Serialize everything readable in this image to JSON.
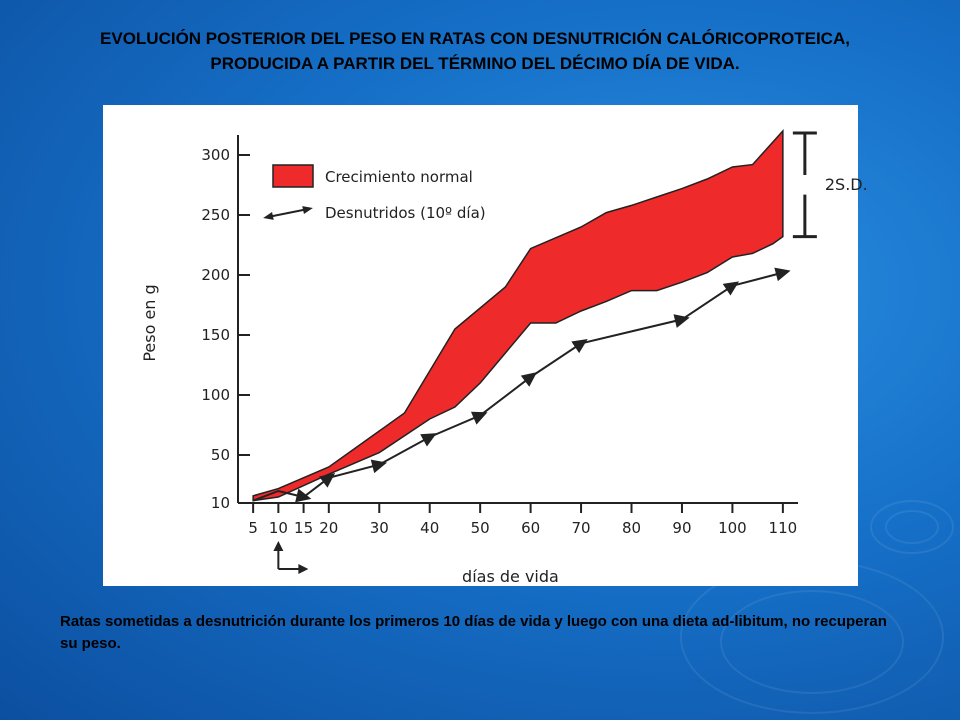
{
  "slide": {
    "title": "EVOLUCIÓN POSTERIOR DEL PESO EN RATAS CON DESNUTRICIÓN CALÓRICOPROTEICA,  PRODUCIDA A PARTIR DEL TÉRMINO DEL DÉCIMO DÍA DE VIDA.",
    "caption": "Ratas sometidas a desnutrición durante los primeros 10 días de vida y luego con una dieta ad-libitum, no recuperan su peso."
  },
  "colors": {
    "band_fill": "#ee2a2a",
    "line": "#222222",
    "background": "#1670c8"
  },
  "chart_data": {
    "type": "area",
    "xlabel": "días de vida",
    "ylabel": "Peso en g",
    "x_ticks": [
      5,
      10,
      15,
      20,
      30,
      40,
      50,
      60,
      70,
      80,
      90,
      100,
      110
    ],
    "y_ticks": [
      10,
      50,
      100,
      150,
      200,
      250,
      300
    ],
    "y_tick_labels": [
      "10",
      "50",
      "100",
      "150",
      "200",
      "250",
      "300"
    ],
    "xlim": [
      2,
      113
    ],
    "ylim": [
      10,
      310
    ],
    "legend": {
      "position": "top-left",
      "entries": [
        {
          "label": "Crecimiento normal",
          "marker": "filled-band"
        },
        {
          "label": "Desnutridos (10º día)",
          "marker": "arrow-line"
        }
      ]
    },
    "series": [
      {
        "name": "Crecimiento normal",
        "kind": "band",
        "upper": {
          "x": [
            5,
            10,
            20,
            30,
            35,
            40,
            45,
            55,
            60,
            70,
            75,
            80,
            85,
            90,
            95,
            100,
            104,
            110
          ],
          "y": [
            16,
            22,
            40,
            70,
            85,
            120,
            155,
            190,
            222,
            240,
            252,
            258,
            265,
            272,
            280,
            290,
            292,
            320
          ]
        },
        "lower": {
          "x": [
            5,
            10,
            20,
            30,
            40,
            45,
            50,
            55,
            60,
            65,
            70,
            75,
            80,
            85,
            90,
            95,
            100,
            104,
            108,
            110
          ],
          "y": [
            12,
            15,
            34,
            52,
            80,
            90,
            110,
            135,
            160,
            160,
            170,
            178,
            187,
            187,
            194,
            202,
            215,
            218,
            226,
            232
          ]
        }
      },
      {
        "name": "Desnutridos (10º día)",
        "kind": "line-arrows",
        "x": [
          5,
          10,
          15,
          20,
          30,
          40,
          50,
          60,
          70,
          90,
          100,
          110
        ],
        "y": [
          12,
          20,
          15,
          31,
          42,
          65,
          83,
          115,
          143,
          163,
          191,
          202
        ]
      }
    ],
    "annotations": [
      {
        "type": "bracket",
        "label": "2S.D.",
        "x": 110,
        "y_range": [
          232,
          320
        ]
      },
      {
        "type": "arrow",
        "label": "",
        "x": 10,
        "note": "start of diet"
      }
    ]
  }
}
